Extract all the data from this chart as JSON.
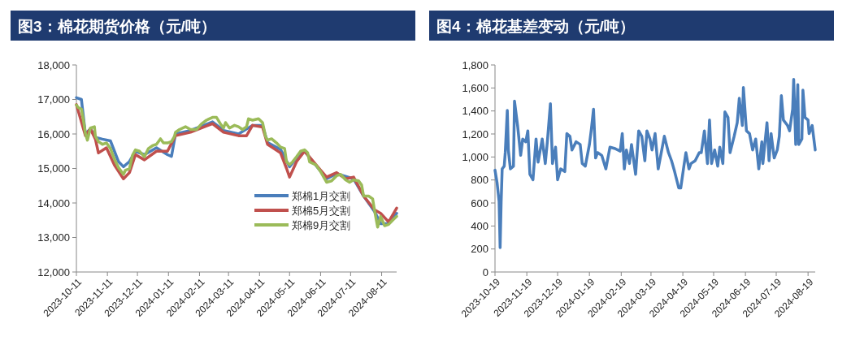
{
  "chart_data": [
    {
      "type": "line",
      "title": "图3：棉花期货价格（元/吨）",
      "legend": "bottom right",
      "xlim": [
        "2023-10-11",
        "2024-08-26"
      ],
      "xticks": [
        "2023-10-11",
        "2023-11-11",
        "2023-12-11",
        "2024-01-11",
        "2024-02-11",
        "2024-03-11",
        "2024-04-11",
        "2024-05-11",
        "2024-06-11",
        "2024-07-11",
        "2024-08-11"
      ],
      "ylim": [
        12000,
        18000
      ],
      "yticks": [
        {
          "value": 12000,
          "label": "12,000"
        },
        {
          "value": 13000,
          "label": "13,000"
        },
        {
          "value": 14000,
          "label": "14,000"
        },
        {
          "value": 15000,
          "label": "15,000"
        },
        {
          "value": 16000,
          "label": "16,000"
        },
        {
          "value": 17000,
          "label": "17,000"
        },
        {
          "value": 18000,
          "label": "18,000"
        }
      ],
      "series": [
        {
          "name": "郑棉1月交割",
          "color": "#4a7ebb",
          "x": [
            "2023-10-11",
            "2023-10-16",
            "2023-10-20",
            "2023-10-25",
            "2023-10-30",
            "2023-11-06",
            "2023-11-14",
            "2023-11-22",
            "2023-11-27",
            "2023-12-03",
            "2023-12-09",
            "2023-12-18",
            "2023-12-30",
            "2024-01-10",
            "2024-01-14",
            "2024-01-18",
            "2024-02-02",
            "2024-02-24",
            "2024-03-06",
            "2024-03-21",
            "2024-04-04",
            "2024-04-14",
            "2024-04-19",
            "2024-05-02",
            "2024-05-11",
            "2024-05-18",
            "2024-05-26",
            "2024-06-06",
            "2024-06-17",
            "2024-06-27",
            "2024-07-14",
            "2024-07-24",
            "2024-08-04",
            "2024-08-10",
            "2024-08-18",
            "2024-08-26"
          ],
          "values": [
            17050,
            17000,
            16000,
            16150,
            15900,
            15850,
            15800,
            15200,
            15050,
            15200,
            15500,
            15400,
            15600,
            15400,
            15350,
            16000,
            16100,
            16350,
            16100,
            16000,
            16250,
            16250,
            15750,
            15550,
            15050,
            15300,
            15500,
            15100,
            14700,
            14850,
            14700,
            14200,
            13750,
            13400,
            13400,
            13700
          ]
        },
        {
          "name": "郑棉5月交割",
          "color": "#c0504d",
          "x": [
            "2023-10-11",
            "2023-10-20",
            "2023-10-25",
            "2023-10-30",
            "2023-11-02",
            "2023-11-10",
            "2023-11-18",
            "2023-11-27",
            "2023-12-03",
            "2023-12-09",
            "2023-12-18",
            "2023-12-30",
            "2024-01-10",
            "2024-01-18",
            "2024-02-02",
            "2024-02-24",
            "2024-03-06",
            "2024-03-21",
            "2024-03-29",
            "2024-04-04",
            "2024-04-14",
            "2024-04-19",
            "2024-05-02",
            "2024-05-08",
            "2024-05-11",
            "2024-05-18",
            "2024-05-26",
            "2024-06-11",
            "2024-06-17",
            "2024-06-27",
            "2024-07-06",
            "2024-07-14",
            "2024-07-24",
            "2024-08-04",
            "2024-08-10",
            "2024-08-18",
            "2024-08-26"
          ],
          "values": [
            16850,
            15950,
            16150,
            15850,
            15450,
            15600,
            15100,
            14700,
            14880,
            15400,
            15250,
            15500,
            15500,
            15950,
            16050,
            16300,
            16050,
            15950,
            15950,
            16250,
            16200,
            15700,
            15450,
            15000,
            14750,
            15200,
            15500,
            14950,
            14750,
            14880,
            14700,
            14750,
            14200,
            13800,
            13700,
            13450,
            13850
          ]
        },
        {
          "name": "郑棉9月交割",
          "color": "#9bbb59",
          "x": [
            "2023-10-11",
            "2023-10-13",
            "2023-10-16",
            "2023-10-18",
            "2023-10-20",
            "2023-10-22",
            "2023-10-25",
            "2023-10-29",
            "2023-10-30",
            "2023-11-02",
            "2023-11-06",
            "2023-11-10",
            "2023-11-14",
            "2023-11-18",
            "2023-11-22",
            "2023-11-27",
            "2023-11-29",
            "2023-12-03",
            "2023-12-06",
            "2023-12-09",
            "2023-12-13",
            "2023-12-18",
            "2023-12-22",
            "2023-12-26",
            "2023-12-30",
            "2024-01-03",
            "2024-01-06",
            "2024-01-10",
            "2024-01-14",
            "2024-01-17",
            "2024-01-18",
            "2024-01-22",
            "2024-01-28",
            "2024-02-02",
            "2024-02-08",
            "2024-02-13",
            "2024-02-18",
            "2024-02-24",
            "2024-02-28",
            "2024-03-03",
            "2024-03-06",
            "2024-03-08",
            "2024-03-12",
            "2024-03-17",
            "2024-03-21",
            "2024-03-25",
            "2024-03-29",
            "2024-03-31",
            "2024-04-04",
            "2024-04-10",
            "2024-04-14",
            "2024-04-17",
            "2024-04-19",
            "2024-04-23",
            "2024-04-28",
            "2024-05-02",
            "2024-05-06",
            "2024-05-08",
            "2024-05-11",
            "2024-05-14",
            "2024-05-18",
            "2024-05-22",
            "2024-05-26",
            "2024-05-29",
            "2024-05-31",
            "2024-06-06",
            "2024-06-11",
            "2024-06-17",
            "2024-06-22",
            "2024-06-27",
            "2024-07-01",
            "2024-07-06",
            "2024-07-10",
            "2024-07-14",
            "2024-07-19",
            "2024-07-22",
            "2024-07-24",
            "2024-07-29",
            "2024-08-02",
            "2024-08-04",
            "2024-08-07",
            "2024-08-10",
            "2024-08-14",
            "2024-08-18",
            "2024-08-22",
            "2024-08-26"
          ],
          "values": [
            16840,
            16760,
            16720,
            16400,
            16010,
            15820,
            16170,
            16210,
            15930,
            15780,
            15700,
            15740,
            15580,
            15270,
            15030,
            14830,
            14950,
            14990,
            15380,
            15540,
            15500,
            15340,
            15580,
            15660,
            15700,
            15860,
            15740,
            15740,
            15780,
            15930,
            16050,
            16130,
            16210,
            16130,
            16130,
            16290,
            16400,
            16480,
            16480,
            16290,
            16170,
            16330,
            16170,
            16250,
            16210,
            16130,
            16210,
            16440,
            16400,
            16440,
            16330,
            15930,
            15820,
            15860,
            15740,
            15620,
            15580,
            15190,
            15110,
            15190,
            15340,
            15500,
            15540,
            15460,
            15190,
            15110,
            14910,
            14600,
            14640,
            14790,
            14830,
            14670,
            14600,
            14670,
            14640,
            14520,
            14200,
            14200,
            14120,
            13770,
            13300,
            13610,
            13340,
            13380,
            13500,
            13610
          ]
        }
      ]
    },
    {
      "type": "line",
      "title": "图4：棉花基差变动（元/吨）",
      "xlim": [
        "2023-10-19",
        "2024-08-26"
      ],
      "xticks": [
        "2023-10-19",
        "2023-11-19",
        "2023-12-19",
        "2024-01-19",
        "2024-02-19",
        "2024-03-19",
        "2024-04-19",
        "2024-05-19",
        "2024-06-19",
        "2024-07-19",
        "2024-08-19"
      ],
      "ylim": [
        0,
        1800
      ],
      "yticks": [
        0,
        200,
        400,
        600,
        800,
        {
          "value": 1000,
          "label": "1,000"
        },
        {
          "value": 1200,
          "label": "1,200"
        },
        {
          "value": 1400,
          "label": "1,400"
        },
        {
          "value": 1600,
          "label": "1,600"
        },
        {
          "value": 1800,
          "label": "1,800"
        }
      ],
      "series": [
        {
          "color": "#4a7ebb",
          "x": [
            "2023-10-19",
            "2023-10-21",
            "2023-10-23",
            "2023-10-24",
            "2023-10-25",
            "2023-10-26",
            "2023-10-28",
            "2023-10-29",
            "2023-10-31",
            "2023-11-01",
            "2023-11-03",
            "2023-11-06",
            "2023-11-07",
            "2023-11-10",
            "2023-11-13",
            "2023-11-15",
            "2023-11-18",
            "2023-11-20",
            "2023-11-22",
            "2023-11-25",
            "2023-11-28",
            "2023-11-30",
            "2023-12-04",
            "2023-12-07",
            "2023-12-09",
            "2023-12-12",
            "2023-12-14",
            "2023-12-17",
            "2023-12-19",
            "2023-12-22",
            "2023-12-26",
            "2023-12-28",
            "2023-12-31",
            "2024-01-02",
            "2024-01-06",
            "2024-01-10",
            "2024-01-12",
            "2024-01-15",
            "2024-01-19",
            "2024-01-21",
            "2024-01-23",
            "2024-01-25",
            "2024-01-27",
            "2024-01-31",
            "2024-02-04",
            "2024-02-08",
            "2024-02-13",
            "2024-02-18",
            "2024-02-20",
            "2024-02-22",
            "2024-02-24",
            "2024-02-27",
            "2024-02-29",
            "2024-03-04",
            "2024-03-07",
            "2024-03-10",
            "2024-03-13",
            "2024-03-15",
            "2024-03-18",
            "2024-03-20",
            "2024-03-23",
            "2024-03-26",
            "2024-03-28",
            "2024-04-01",
            "2024-04-05",
            "2024-04-08",
            "2024-04-11",
            "2024-04-15",
            "2024-04-17",
            "2024-04-20",
            "2024-04-22",
            "2024-04-25",
            "2024-04-27",
            "2024-05-01",
            "2024-05-05",
            "2024-05-07",
            "2024-05-10",
            "2024-05-13",
            "2024-05-15",
            "2024-05-17",
            "2024-05-20",
            "2024-05-23",
            "2024-05-25",
            "2024-05-28",
            "2024-05-30",
            "2024-06-02",
            "2024-06-04",
            "2024-06-08",
            "2024-06-11",
            "2024-06-13",
            "2024-06-16",
            "2024-06-17",
            "2024-06-20",
            "2024-06-23",
            "2024-06-26",
            "2024-06-29",
            "2024-07-02",
            "2024-07-05",
            "2024-07-06",
            "2024-07-10",
            "2024-07-12",
            "2024-07-14",
            "2024-07-17",
            "2024-07-20",
            "2024-07-22",
            "2024-07-24",
            "2024-07-26",
            "2024-07-30",
            "2024-08-01",
            "2024-08-04",
            "2024-08-05",
            "2024-08-07",
            "2024-08-09",
            "2024-08-10",
            "2024-08-13",
            "2024-08-14",
            "2024-08-16",
            "2024-08-19",
            "2024-08-20",
            "2024-08-23",
            "2024-08-26"
          ],
          "values": [
            885,
            778,
            613,
            212,
            613,
            896,
            920,
            1038,
            1404,
            1061,
            896,
            920,
            1486,
            1274,
            1014,
            1156,
            1132,
            1227,
            849,
            802,
            1156,
            955,
            1156,
            943,
            1132,
            1463,
            943,
            1085,
            802,
            896,
            873,
            1203,
            1180,
            1061,
            1132,
            1109,
            943,
            920,
            1109,
            1250,
            1415,
            991,
            1038,
            1014,
            896,
            1085,
            1073,
            1050,
            1203,
            896,
            1061,
            943,
            1109,
            849,
            1227,
            1180,
            967,
            1227,
            1156,
            1061,
            1203,
            896,
            991,
            1180,
            1038,
            967,
            873,
            731,
            731,
            920,
            1038,
            896,
            943,
            967,
            1038,
            1038,
            1227,
            943,
            1321,
            943,
            1061,
            920,
            1085,
            943,
            1392,
            1344,
            1038,
            1180,
            1298,
            1510,
            1274,
            1604,
            1227,
            1203,
            1061,
            1156,
            896,
            1132,
            943,
            1298,
            967,
            1203,
            991,
            1061,
            1180,
            1533,
            1321,
            1274,
            1227,
            1415,
            1675,
            1109,
            1628,
            1109,
            1156,
            1581,
            1344,
            1321,
            1203,
            1274,
            1061
          ]
        }
      ]
    }
  ]
}
